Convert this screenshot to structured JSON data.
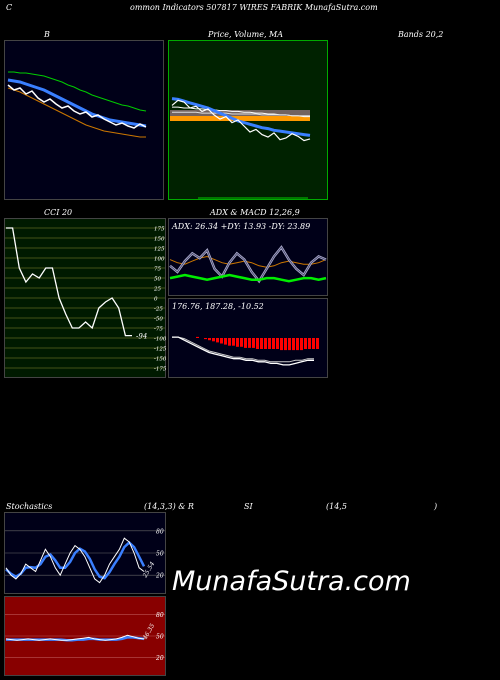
{
  "header": {
    "c": "C",
    "title": "ommon  Indicators 507817 WIRES FABRIK MunafaSutra.com"
  },
  "labels": {
    "b": "B",
    "price_ma": "Price,  Volume,  MA",
    "bands": "Bands 20,2",
    "cci": "CCI 20",
    "adx_macd": "ADX  & MACD 12,26,9",
    "stoch": "Stochastics",
    "stoch_params": "(14,3,3) & R",
    "si": "SI",
    "rsi_params": "(14,5",
    "rsi_close": ")"
  },
  "watermark": "MunafaSutra.com",
  "colors": {
    "bb_bg": "#000018",
    "price_bg": "#002200",
    "cci_bg": "#001a00",
    "adx_bg": "#000018",
    "stoch_bg": "#000018",
    "rsi_bg": "#880000",
    "price_line": "#ffffff",
    "ma_blue": "#3a7fff",
    "band_upper": "#00cc00",
    "band_lower": "#cc7700",
    "macd_hist": "#ff0000",
    "adx_green": "#00ee00"
  },
  "chart_data": [
    {
      "type": "line",
      "panel": "bollinger",
      "series": [
        {
          "values": [
            11.5,
            11.0,
            11.2,
            10.6,
            10.9,
            10.2,
            9.8,
            10.1,
            9.6,
            9.2,
            9.4,
            8.9,
            8.6,
            8.8,
            8.3,
            8.5,
            8.1,
            7.8,
            7.5,
            7.7,
            7.4,
            7.2,
            7.6,
            7.3
          ]
        },
        {
          "values": [
            12.0,
            11.9,
            11.8,
            11.6,
            11.4,
            11.2,
            11.0,
            10.7,
            10.4,
            10.1,
            9.8,
            9.5,
            9.2,
            8.9,
            8.6,
            8.4,
            8.2,
            8.0,
            7.9,
            7.8,
            7.7,
            7.6,
            7.5,
            7.4
          ]
        },
        {
          "values": [
            12.8,
            12.8,
            12.7,
            12.7,
            12.6,
            12.5,
            12.4,
            12.2,
            12.0,
            11.8,
            11.5,
            11.3,
            11.0,
            10.8,
            10.5,
            10.3,
            10.1,
            9.9,
            9.7,
            9.5,
            9.4,
            9.2,
            9.0,
            8.9
          ]
        },
        {
          "values": [
            11.2,
            11.0,
            10.8,
            10.5,
            10.2,
            9.9,
            9.6,
            9.3,
            9.0,
            8.7,
            8.4,
            8.1,
            7.8,
            7.5,
            7.3,
            7.1,
            6.9,
            6.8,
            6.7,
            6.6,
            6.5,
            6.4,
            6.3,
            6.3
          ]
        }
      ]
    },
    {
      "type": "line",
      "panel": "price_volume_ma",
      "series": [
        {
          "values": [
            9.2,
            9.8,
            9.6,
            8.9,
            9.1,
            8.5,
            8.8,
            8.1,
            7.6,
            7.9,
            7.2,
            7.5,
            6.8,
            6.1,
            6.4,
            5.8,
            5.5,
            6.0,
            5.2,
            5.4,
            5.9,
            5.6,
            5.1,
            5.3
          ]
        },
        {
          "values": [
            10.0,
            9.9,
            9.7,
            9.5,
            9.3,
            9.1,
            8.9,
            8.6,
            8.3,
            8.0,
            7.7,
            7.4,
            7.2,
            7.0,
            6.8,
            6.6,
            6.5,
            6.3,
            6.2,
            6.1,
            6.0,
            5.9,
            5.8,
            5.7
          ]
        },
        {
          "values": [
            8.4,
            8.4,
            8.4,
            8.4,
            8.4,
            8.3,
            8.3,
            8.3,
            8.3,
            8.3,
            8.2,
            8.2,
            8.2,
            8.2,
            8.2,
            8.1,
            8.1,
            8.1,
            8.1,
            8.1,
            8.0,
            8.0,
            8.0,
            8.0
          ]
        },
        {
          "values": [
            9.0,
            9.0,
            8.9,
            8.9,
            8.8,
            8.8,
            8.7,
            8.7,
            8.6,
            8.6,
            8.5,
            8.5,
            8.4,
            8.4,
            8.3,
            8.3,
            8.2,
            8.2,
            8.1,
            8.1,
            8.0,
            8.0,
            7.9,
            7.9
          ]
        }
      ]
    },
    {
      "type": "line",
      "panel": "cci",
      "y_ticks": [
        175,
        150,
        125,
        100,
        75,
        50,
        25,
        0,
        -25,
        -50,
        -75,
        -100,
        -125,
        -150,
        -175
      ],
      "ylim": [
        -185,
        185
      ],
      "last_label": "-94",
      "series": [
        {
          "values": [
            175,
            175,
            75,
            40,
            60,
            50,
            75,
            75,
            0,
            -40,
            -75,
            -75,
            -60,
            -75,
            -25,
            -10,
            0,
            -25,
            -94,
            -94
          ]
        }
      ]
    },
    {
      "type": "line",
      "panel": "adx",
      "readout": "ADX: 26.34  +DY: 13.93 -DY: 23.89",
      "series": [
        {
          "values": [
            22,
            18,
            25,
            30,
            27,
            32,
            20,
            15,
            24,
            30,
            26,
            18,
            12,
            20,
            28,
            34,
            26,
            20,
            16,
            24,
            28,
            26
          ]
        },
        {
          "values": [
            26,
            24,
            23,
            25,
            27,
            28,
            26,
            24,
            23,
            24,
            25,
            24,
            22,
            21,
            22,
            24,
            25,
            24,
            23,
            23,
            24,
            26
          ]
        },
        {
          "values": [
            14,
            15,
            16,
            15,
            14,
            13,
            14,
            15,
            16,
            15,
            14,
            13,
            13,
            14,
            14,
            13,
            12,
            13,
            14,
            14,
            13,
            14
          ]
        }
      ]
    },
    {
      "type": "bar",
      "panel": "macd",
      "readout": "176.76,  187.28,  -10.52",
      "values": [
        1,
        0,
        -1,
        -2,
        -3,
        -4,
        -5,
        -6,
        -7,
        -7,
        -8,
        -8,
        -9,
        -9,
        -9,
        -10,
        -10,
        -10,
        -10,
        -10,
        -10,
        -11,
        -11,
        -11,
        -11,
        -11,
        -11,
        -10,
        -10,
        -10,
        -10
      ],
      "series": [
        {
          "values": [
            0,
            0,
            -2,
            -4,
            -6,
            -8,
            -10,
            -11,
            -12,
            -13,
            -14,
            -14,
            -15,
            -15,
            -16,
            -16,
            -17,
            -17,
            -18,
            -18,
            -17,
            -16,
            -15,
            -15
          ]
        },
        {
          "values": [
            0,
            0,
            -1,
            -3,
            -5,
            -7,
            -9,
            -10,
            -11,
            -12,
            -13,
            -13,
            -14,
            -14,
            -15,
            -15,
            -16,
            -16,
            -16,
            -16,
            -15,
            -15,
            -14,
            -14
          ]
        }
      ]
    },
    {
      "type": "line",
      "panel": "stochastics",
      "y_ticks": [
        80,
        50,
        20
      ],
      "ylim": [
        0,
        100
      ],
      "last_label": "25.54",
      "series": [
        {
          "values": [
            30,
            20,
            15,
            22,
            35,
            30,
            25,
            40,
            55,
            45,
            30,
            20,
            35,
            50,
            60,
            55,
            45,
            30,
            15,
            10,
            20,
            35,
            45,
            55,
            70,
            65,
            50,
            30,
            25
          ]
        },
        {
          "values": [
            28,
            22,
            18,
            22,
            30,
            31,
            30,
            35,
            45,
            48,
            40,
            30,
            30,
            38,
            50,
            56,
            52,
            42,
            28,
            18,
            16,
            24,
            35,
            45,
            58,
            64,
            58,
            45,
            32
          ]
        }
      ]
    },
    {
      "type": "line",
      "panel": "rsi",
      "y_ticks": [
        80,
        50,
        20
      ],
      "ylim": [
        0,
        100
      ],
      "last_label": "46.35",
      "series": [
        {
          "values": [
            46,
            45,
            44,
            45,
            46,
            45,
            44,
            45,
            46,
            45,
            44,
            44,
            45,
            46,
            47,
            48,
            46,
            45,
            44,
            45,
            46,
            48,
            51,
            49,
            47,
            46
          ]
        },
        {
          "values": [
            45,
            45,
            45,
            45,
            45,
            45,
            45,
            45,
            45,
            45,
            45,
            44,
            44,
            45,
            45,
            46,
            46,
            45,
            45,
            45,
            45,
            46,
            48,
            48,
            47,
            46
          ]
        }
      ]
    }
  ]
}
